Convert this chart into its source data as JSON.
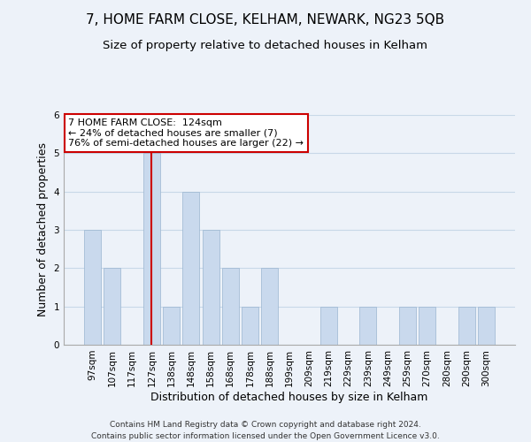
{
  "title": "7, HOME FARM CLOSE, KELHAM, NEWARK, NG23 5QB",
  "subtitle": "Size of property relative to detached houses in Kelham",
  "xlabel": "Distribution of detached houses by size in Kelham",
  "ylabel": "Number of detached properties",
  "bar_labels": [
    "97sqm",
    "107sqm",
    "117sqm",
    "127sqm",
    "138sqm",
    "148sqm",
    "158sqm",
    "168sqm",
    "178sqm",
    "188sqm",
    "199sqm",
    "209sqm",
    "219sqm",
    "229sqm",
    "239sqm",
    "249sqm",
    "259sqm",
    "270sqm",
    "280sqm",
    "290sqm",
    "300sqm"
  ],
  "bar_values": [
    3,
    2,
    0,
    5,
    1,
    4,
    3,
    2,
    1,
    2,
    0,
    0,
    1,
    0,
    1,
    0,
    1,
    1,
    0,
    1,
    1
  ],
  "bar_color": "#c9d9ed",
  "bar_edge_color": "#9ab5d0",
  "grid_color": "#c8d8e8",
  "background_color": "#edf2f9",
  "ylim": [
    0,
    6
  ],
  "yticks": [
    0,
    1,
    2,
    3,
    4,
    5,
    6
  ],
  "annotation_box_text": "7 HOME FARM CLOSE:  124sqm\n← 24% of detached houses are smaller (7)\n76% of semi-detached houses are larger (22) →",
  "annotation_box_color": "#ffffff",
  "annotation_box_edge_color": "#cc0000",
  "vline_color": "#cc0000",
  "vline_x": 3.5,
  "footer_line1": "Contains HM Land Registry data © Crown copyright and database right 2024.",
  "footer_line2": "Contains public sector information licensed under the Open Government Licence v3.0.",
  "title_fontsize": 11,
  "subtitle_fontsize": 9.5,
  "axis_label_fontsize": 9,
  "tick_fontsize": 7.5,
  "annotation_fontsize": 8,
  "footer_fontsize": 6.5
}
